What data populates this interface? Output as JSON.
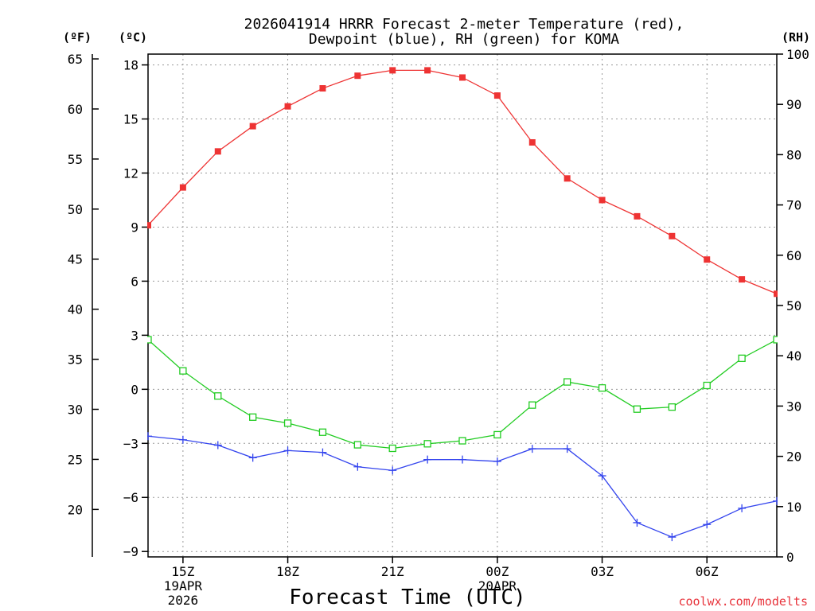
{
  "chart_data": {
    "type": "line",
    "title_line1": "2026041914 HRRR Forecast 2-meter Temperature (red),",
    "title_line2": "Dewpoint (blue), RH (green) for KOMA",
    "xlabel": "Forecast Time (UTC)",
    "watermark": "coolwx.com/modelts",
    "unit_labels": {
      "fahrenheit": "(ºF)",
      "celsius": "(ºC)",
      "rh": "(RH)"
    },
    "x": [
      14,
      15,
      16,
      17,
      18,
      19,
      20,
      21,
      22,
      23,
      24,
      25,
      26,
      27,
      28,
      29,
      30,
      31,
      32
    ],
    "xlim": [
      14,
      32
    ],
    "x_ticks": [
      {
        "x": 15,
        "label": "15Z",
        "sub1": "19APR",
        "sub2": "2026"
      },
      {
        "x": 18,
        "label": "18Z",
        "sub1": "",
        "sub2": ""
      },
      {
        "x": 21,
        "label": "21Z",
        "sub1": "",
        "sub2": ""
      },
      {
        "x": 24,
        "label": "00Z",
        "sub1": "20APR",
        "sub2": ""
      },
      {
        "x": 27,
        "label": "03Z",
        "sub1": "",
        "sub2": ""
      },
      {
        "x": 30,
        "label": "06Z",
        "sub1": "",
        "sub2": ""
      }
    ],
    "ylim_celsius": [
      -9.3,
      18.6
    ],
    "yticks_celsius": [
      18,
      15,
      12,
      9,
      6,
      3,
      0,
      -3,
      -6,
      -9
    ],
    "yticks_fahrenheit": [
      65,
      60,
      55,
      50,
      45,
      40,
      35,
      30,
      25,
      20
    ],
    "ylim_rh": [
      0,
      100
    ],
    "yticks_rh": [
      100,
      90,
      80,
      70,
      60,
      50,
      40,
      30,
      20,
      10,
      0
    ],
    "series": [
      {
        "name": "2-meter Temperature",
        "axis": "celsius",
        "color": "#ee3333",
        "marker": "filled-square",
        "values": [
          9.1,
          11.2,
          13.2,
          14.6,
          15.7,
          16.7,
          17.4,
          17.7,
          17.7,
          17.3,
          16.3,
          13.7,
          11.7,
          10.5,
          9.6,
          8.5,
          7.2,
          6.1,
          5.3
        ]
      },
      {
        "name": "Dewpoint",
        "axis": "celsius",
        "color": "#3344ee",
        "marker": "plus",
        "values": [
          -2.6,
          -2.8,
          -3.1,
          -3.8,
          -3.4,
          -3.5,
          -4.3,
          -4.5,
          -3.9,
          -3.9,
          -4.0,
          -3.3,
          -3.3,
          -4.8,
          -7.4,
          -8.2,
          -7.5,
          -6.6,
          -6.2
        ]
      },
      {
        "name": "RH",
        "axis": "rh",
        "color": "#22cc22",
        "marker": "open-square",
        "values": [
          43.2,
          37.0,
          32.0,
          27.8,
          26.6,
          24.8,
          22.3,
          21.6,
          22.5,
          23.1,
          24.3,
          30.2,
          34.8,
          33.6,
          29.4,
          29.8,
          34.1,
          39.5,
          43.2
        ]
      }
    ]
  }
}
